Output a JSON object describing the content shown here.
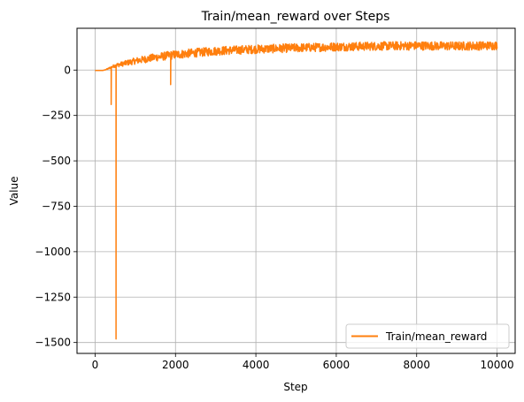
{
  "chart_data": {
    "type": "line",
    "title": "Train/mean_reward over Steps",
    "xlabel": "Step",
    "ylabel": "Value",
    "xlim": [
      -450,
      10450
    ],
    "ylim": [
      -1560,
      230
    ],
    "x_ticks": [
      0,
      2000,
      4000,
      6000,
      8000,
      10000
    ],
    "x_tick_labels": [
      "0",
      "2000",
      "4000",
      "6000",
      "8000",
      "10000"
    ],
    "y_ticks": [
      0,
      -250,
      -500,
      -750,
      -1000,
      -1250,
      -1500
    ],
    "y_tick_labels": [
      "0",
      "−250",
      "−500",
      "−750",
      "−1000",
      "−1250",
      "−1500"
    ],
    "grid": true,
    "legend_position": "lower right",
    "series": [
      {
        "name": "Train/mean_reward",
        "color": "#ff7f0e",
        "trend_x": [
          0,
          200,
          300,
          400,
          500,
          700,
          1000,
          1500,
          2000,
          2500,
          3000,
          4000,
          5000,
          6000,
          7000,
          8000,
          9000,
          10000
        ],
        "trend_y": [
          -2,
          -2,
          5,
          15,
          25,
          35,
          50,
          70,
          85,
          95,
          105,
          115,
          122,
          128,
          132,
          134,
          132,
          135
        ],
        "noise_amplitude": [
          0,
          0,
          3,
          6,
          10,
          14,
          18,
          22,
          24,
          24,
          24,
          24,
          24,
          24,
          24,
          24,
          24,
          24
        ],
        "spikes": [
          {
            "x": 400,
            "y": -190
          },
          {
            "x": 520,
            "y": -1480
          },
          {
            "x": 1880,
            "y": -80
          }
        ]
      }
    ]
  }
}
